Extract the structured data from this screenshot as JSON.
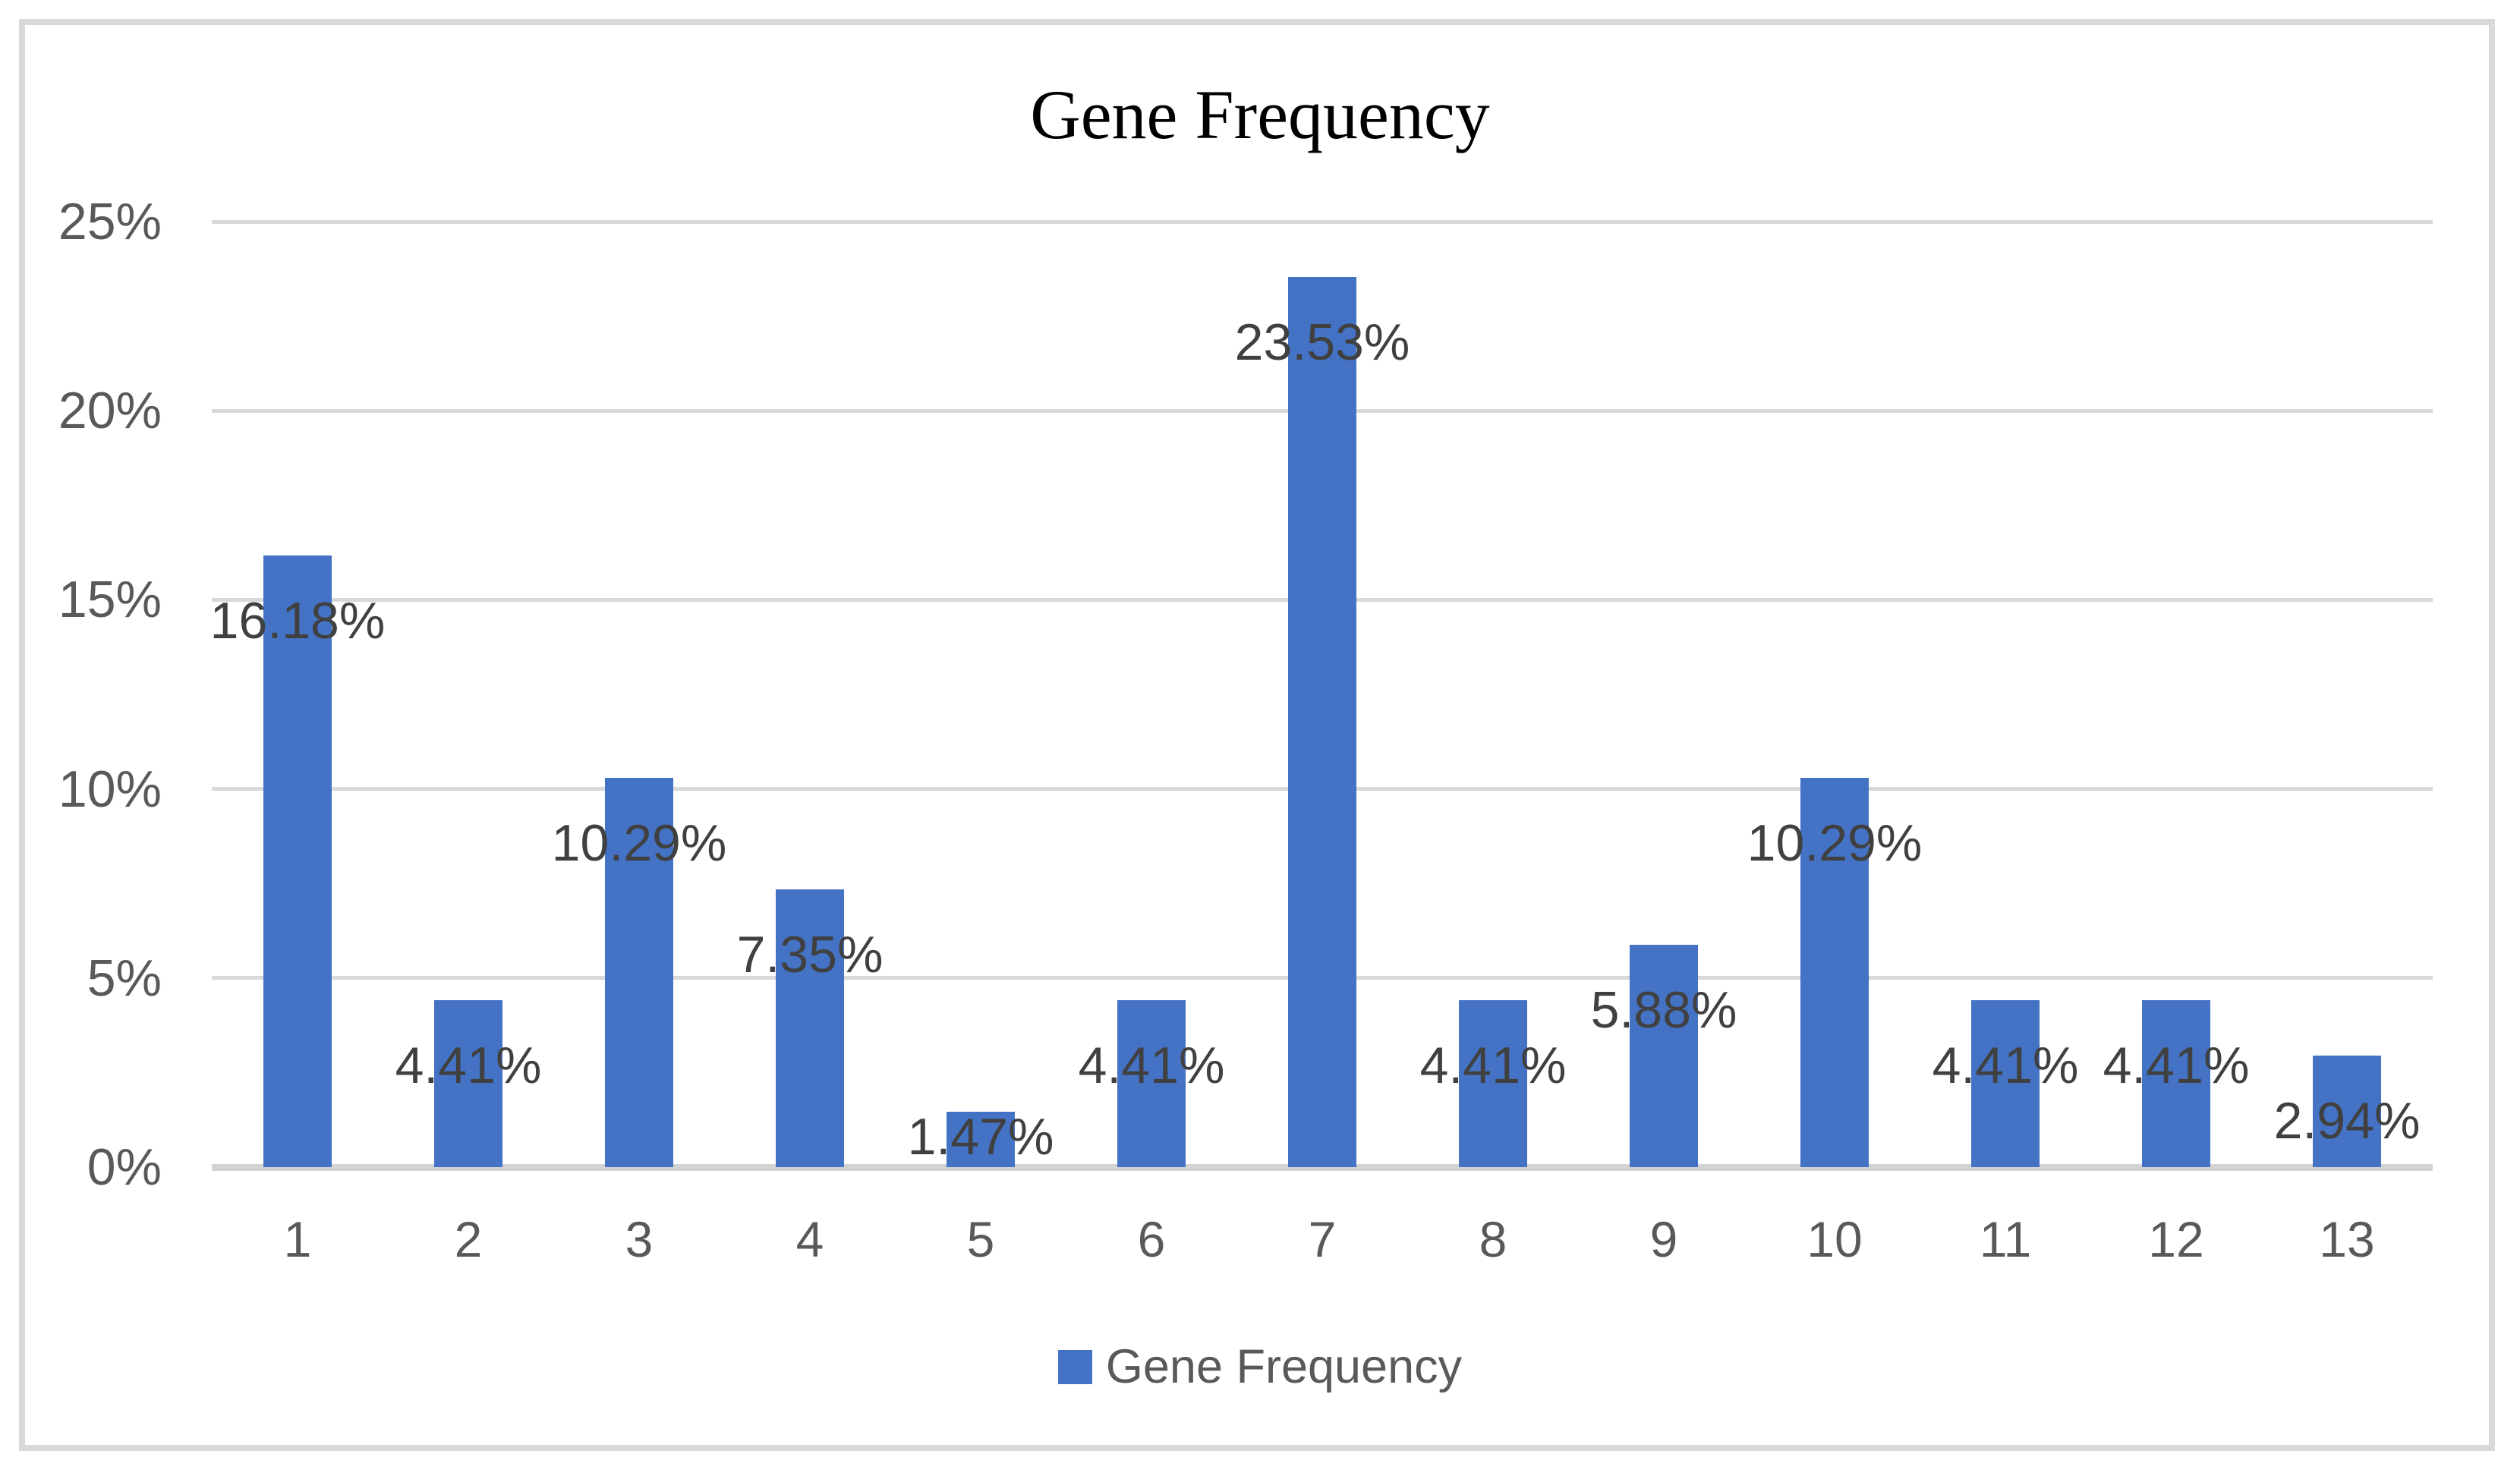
{
  "chart_data": {
    "type": "bar",
    "title": "Gene Frequency",
    "categories": [
      "1",
      "2",
      "3",
      "4",
      "5",
      "6",
      "7",
      "8",
      "9",
      "10",
      "11",
      "12",
      "13"
    ],
    "series": [
      {
        "name": "Gene Frequency",
        "values": [
          16.18,
          4.41,
          10.29,
          7.35,
          1.47,
          4.41,
          23.53,
          4.41,
          5.88,
          10.29,
          4.41,
          4.41,
          2.94
        ]
      }
    ],
    "data_labels": [
      "16.18%",
      "4.41%",
      "10.29%",
      "7.35%",
      "1.47%",
      "4.41%",
      "23.53%",
      "4.41%",
      "5.88%",
      "10.29%",
      "4.41%",
      "4.41%",
      "2.94%"
    ],
    "y_axis": {
      "ticks": [
        {
          "label": "0%",
          "value": 0
        },
        {
          "label": "5%",
          "value": 5
        },
        {
          "label": "10%",
          "value": 10
        },
        {
          "label": "15%",
          "value": 15
        },
        {
          "label": "20%",
          "value": 20
        },
        {
          "label": "25%",
          "value": 25
        }
      ],
      "min": 0,
      "max": 25
    },
    "grid": true,
    "legend": {
      "position": "bottom",
      "entries": [
        {
          "label": "Gene Frequency",
          "color": "#4472c4"
        }
      ]
    },
    "colors": {
      "bar": "#4472c4",
      "gridline": "#d9d9d9",
      "axis_line": "#d3d3d3",
      "tick_text": "#595959",
      "data_label_text": "#404040",
      "title_text": "#000000",
      "border": "#d9d9d9",
      "background": "#ffffff"
    }
  }
}
